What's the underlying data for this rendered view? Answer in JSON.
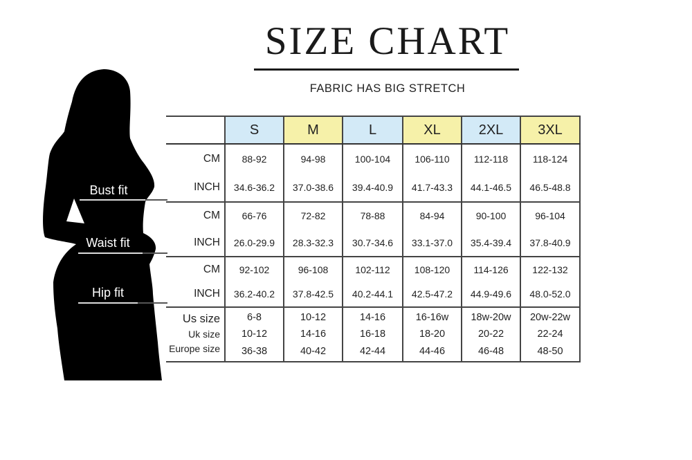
{
  "header": {
    "title": "SIZE CHART",
    "subtitle": "FABRIC HAS BIG STRETCH"
  },
  "figure": {
    "labels": [
      "Bust fit",
      "Waist fit",
      "Hip fit"
    ]
  },
  "colors": {
    "blue_header": "#d3eaf7",
    "yellow_header": "#f6f1a9",
    "silhouette": "#000000"
  },
  "table": {
    "sizes": [
      {
        "label": "S",
        "color": "blue"
      },
      {
        "label": "M",
        "color": "yellow"
      },
      {
        "label": "L",
        "color": "blue"
      },
      {
        "label": "XL",
        "color": "yellow"
      },
      {
        "label": "2XL",
        "color": "blue"
      },
      {
        "label": "3XL",
        "color": "yellow"
      }
    ],
    "groups": [
      {
        "name": "Bust fit",
        "rows": [
          {
            "unit": "CM",
            "values": [
              "88-92",
              "94-98",
              "100-104",
              "106-110",
              "112-118",
              "118-124"
            ]
          },
          {
            "unit": "INCH",
            "values": [
              "34.6-36.2",
              "37.0-38.6",
              "39.4-40.9",
              "41.7-43.3",
              "44.1-46.5",
              "46.5-48.8"
            ]
          }
        ]
      },
      {
        "name": "Waist fit",
        "rows": [
          {
            "unit": "CM",
            "values": [
              "66-76",
              "72-82",
              "78-88",
              "84-94",
              "90-100",
              "96-104"
            ]
          },
          {
            "unit": "INCH",
            "values": [
              "26.0-29.9",
              "28.3-32.3",
              "30.7-34.6",
              "33.1-37.0",
              "35.4-39.4",
              "37.8-40.9"
            ]
          }
        ]
      },
      {
        "name": "Hip fit",
        "rows": [
          {
            "unit": "CM",
            "values": [
              "92-102",
              "96-108",
              "102-112",
              "108-120",
              "114-126",
              "122-132"
            ]
          },
          {
            "unit": "INCH",
            "values": [
              "36.2-40.2",
              "37.8-42.5",
              "40.2-44.1",
              "42.5-47.2",
              "44.9-49.6",
              "48.0-52.0"
            ]
          }
        ]
      }
    ],
    "conversions": [
      {
        "label": "Us size",
        "values": [
          "6-8",
          "10-12",
          "14-16",
          "16-16w",
          "18w-20w",
          "20w-22w"
        ]
      },
      {
        "label": "Uk size",
        "values": [
          "10-12",
          "14-16",
          "16-18",
          "18-20",
          "20-22",
          "22-24"
        ]
      },
      {
        "label": "Europe size",
        "values": [
          "36-38",
          "40-42",
          "42-44",
          "44-46",
          "46-48",
          "48-50"
        ]
      }
    ]
  }
}
